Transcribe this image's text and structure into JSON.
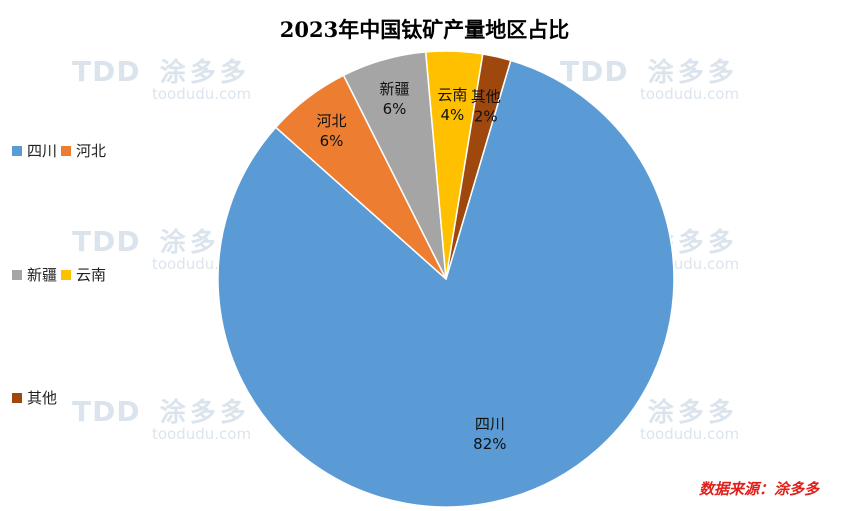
{
  "title": "2023年中国钛矿产量地区占比",
  "source": "数据来源：涂多多",
  "watermark": {
    "logo": "TDD",
    "name": "涂多多",
    "url": "toodudu.com"
  },
  "chart_data": {
    "type": "pie",
    "title": "2023年中国钛矿产量地区占比",
    "categories": [
      "四川",
      "河北",
      "新疆",
      "云南",
      "其他"
    ],
    "values": [
      82,
      6,
      6,
      4,
      2
    ],
    "value_labels": [
      "82%",
      "6%",
      "6%",
      "4%",
      "2%"
    ],
    "colors": [
      "#5B9BD5",
      "#ED7D31",
      "#A5A5A5",
      "#FFC000",
      "#9E480E"
    ],
    "legend_position": "left"
  }
}
